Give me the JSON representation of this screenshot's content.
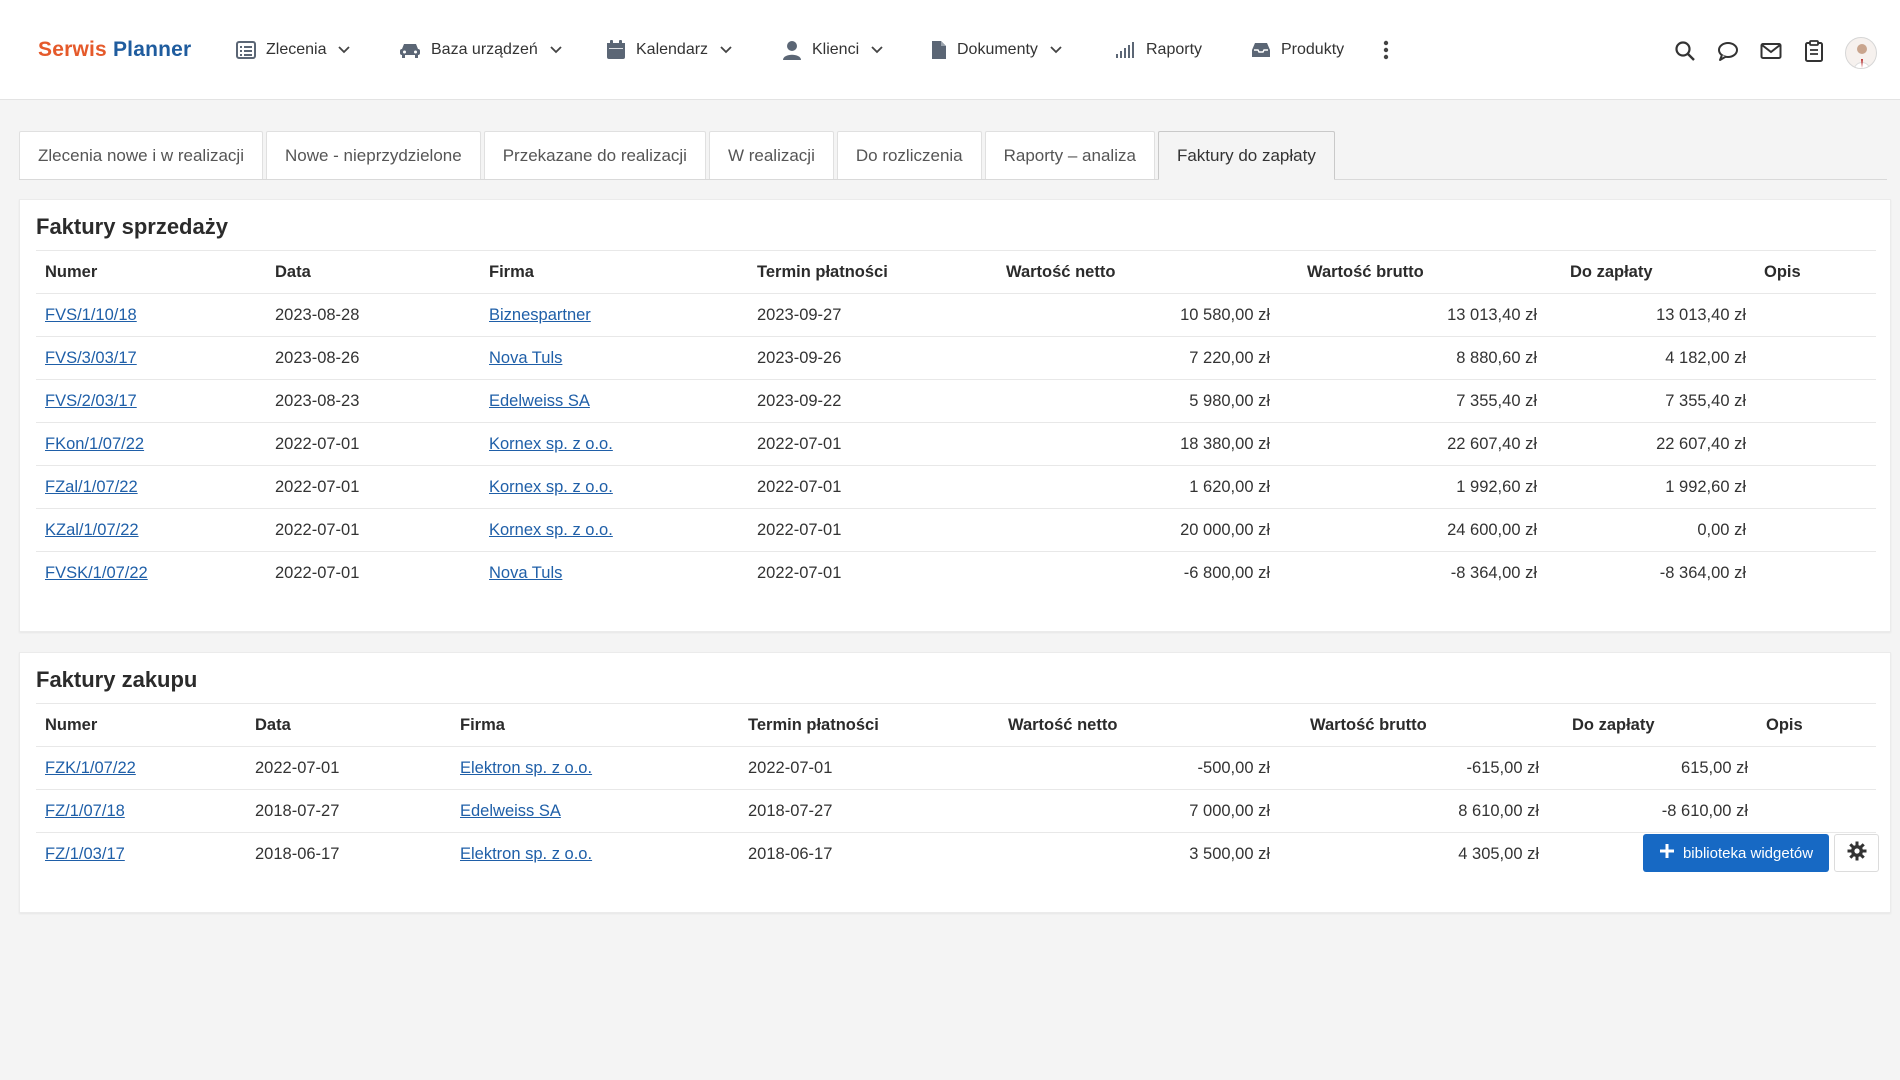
{
  "brand": {
    "part1": "Serwis",
    "part2": "Planner"
  },
  "nav": [
    {
      "label": "Zlecenia",
      "icon": "list-icon",
      "dropdown": true
    },
    {
      "label": "Baza urządzeń",
      "icon": "car-icon",
      "dropdown": true
    },
    {
      "label": "Kalendarz",
      "icon": "calendar-icon",
      "dropdown": true
    },
    {
      "label": "Klienci",
      "icon": "user-icon",
      "dropdown": true
    },
    {
      "label": "Dokumenty",
      "icon": "document-icon",
      "dropdown": true
    },
    {
      "label": "Raporty",
      "icon": "signal-bars-icon",
      "dropdown": false
    },
    {
      "label": "Produkty",
      "icon": "inbox-icon",
      "dropdown": false
    }
  ],
  "tools": [
    "more-vertical-icon",
    "search-icon",
    "chat-icon",
    "mail-icon",
    "clipboard-icon",
    "avatar"
  ],
  "tabs": [
    {
      "label": "Zlecenia nowe i w realizacji",
      "active": false
    },
    {
      "label": "Nowe - nieprzydzielone",
      "active": false
    },
    {
      "label": "Przekazane do realizacji",
      "active": false
    },
    {
      "label": "W realizacji",
      "active": false
    },
    {
      "label": "Do rozliczenia",
      "active": false
    },
    {
      "label": "Raporty – analiza",
      "active": false
    },
    {
      "label": "Faktury do zapłaty",
      "active": true
    }
  ],
  "sales": {
    "title": "Faktury sprzedaży",
    "columns": [
      "Numer",
      "Data",
      "Firma",
      "Termin płatności",
      "Wartość netto",
      "Wartość brutto",
      "Do zapłaty",
      "Opis"
    ],
    "rows": [
      {
        "numer": "FVS/1/10/18",
        "data": "2023-08-28",
        "firma": "Biznespartner",
        "termin": "2023-09-27",
        "netto": "10 580,00 zł",
        "brutto": "13 013,40 zł",
        "do_zaplaty": "13 013,40 zł",
        "opis": ""
      },
      {
        "numer": "FVS/3/03/17",
        "data": "2023-08-26",
        "firma": "Nova Tuls",
        "termin": "2023-09-26",
        "netto": "7 220,00 zł",
        "brutto": "8 880,60 zł",
        "do_zaplaty": "4 182,00 zł",
        "opis": ""
      },
      {
        "numer": "FVS/2/03/17",
        "data": "2023-08-23",
        "firma": "Edelweiss SA",
        "termin": "2023-09-22",
        "netto": "5 980,00 zł",
        "brutto": "7 355,40 zł",
        "do_zaplaty": "7 355,40 zł",
        "opis": ""
      },
      {
        "numer": "FKon/1/07/22",
        "data": "2022-07-01",
        "firma": "Kornex sp. z o.o.",
        "termin": "2022-07-01",
        "netto": "18 380,00 zł",
        "brutto": "22 607,40 zł",
        "do_zaplaty": "22 607,40 zł",
        "opis": ""
      },
      {
        "numer": "FZal/1/07/22",
        "data": "2022-07-01",
        "firma": "Kornex sp. z o.o.",
        "termin": "2022-07-01",
        "netto": "1 620,00 zł",
        "brutto": "1 992,60 zł",
        "do_zaplaty": "1 992,60 zł",
        "opis": ""
      },
      {
        "numer": "KZal/1/07/22",
        "data": "2022-07-01",
        "firma": "Kornex sp. z o.o.",
        "termin": "2022-07-01",
        "netto": "20 000,00 zł",
        "brutto": "24 600,00 zł",
        "do_zaplaty": "0,00 zł",
        "opis": ""
      },
      {
        "numer": "FVSK/1/07/22",
        "data": "2022-07-01",
        "firma": "Nova Tuls",
        "termin": "2022-07-01",
        "netto": "-6 800,00 zł",
        "brutto": "-8 364,00 zł",
        "do_zaplaty": "-8 364,00 zł",
        "opis": ""
      }
    ]
  },
  "purchase": {
    "title": "Faktury zakupu",
    "columns": [
      "Numer",
      "Data",
      "Firma",
      "Termin płatności",
      "Wartość netto",
      "Wartość brutto",
      "Do zapłaty",
      "Opis"
    ],
    "rows": [
      {
        "numer": "FZK/1/07/22",
        "data": "2022-07-01",
        "firma": "Elektron sp. z o.o.",
        "termin": "2022-07-01",
        "netto": "-500,00 zł",
        "brutto": "-615,00 zł",
        "do_zaplaty": "615,00 zł",
        "opis": ""
      },
      {
        "numer": "FZ/1/07/18",
        "data": "2018-07-27",
        "firma": "Edelweiss SA",
        "termin": "2018-07-27",
        "netto": "7 000,00 zł",
        "brutto": "8 610,00 zł",
        "do_zaplaty": "-8 610,00 zł",
        "opis": ""
      },
      {
        "numer": "FZ/1/03/17",
        "data": "2018-06-17",
        "firma": "Elektron sp. z o.o.",
        "termin": "2018-06-17",
        "netto": "3 500,00 zł",
        "brutto": "4 305,00 zł",
        "do_zaplaty": "",
        "opis": ""
      }
    ]
  },
  "widget_button": {
    "label": "biblioteka widgetów",
    "icon": "plus-icon"
  },
  "settings_button": {
    "icon": "gear-icon"
  },
  "colors": {
    "brand_orange": "#e55a2b",
    "brand_blue": "#1f5c9e",
    "link": "#1f5fa8",
    "primary_button": "#1769c4"
  }
}
